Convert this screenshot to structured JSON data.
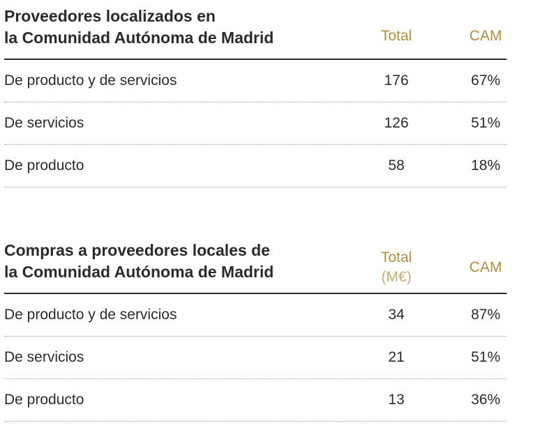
{
  "table1": {
    "title_line1": "Proveedores localizados en",
    "title_line2": "la Comunidad Autónoma de Madrid",
    "col_total": "Total",
    "col_cam": "CAM",
    "rows": [
      {
        "label": "De producto y de servicios",
        "total": "176",
        "cam": "67%"
      },
      {
        "label": "De servicios",
        "total": "126",
        "cam": "51%"
      },
      {
        "label": "De producto",
        "total": "58",
        "cam": "18%"
      }
    ]
  },
  "table2": {
    "title_line1": "Compras a proveedores locales de",
    "title_line2": "la Comunidad Autónoma de Madrid",
    "col_total": "Total",
    "col_total_unit": "(M€)",
    "col_cam": "CAM",
    "rows": [
      {
        "label": "De producto y de servicios",
        "total": "34",
        "cam": "87%"
      },
      {
        "label": "De servicios",
        "total": "21",
        "cam": "51%"
      },
      {
        "label": "De producto",
        "total": "13",
        "cam": "36%"
      }
    ]
  },
  "colors": {
    "text": "#2b2b2b",
    "accent_gold": "#b08d3e",
    "rule": "#2b2b2b",
    "dotted_rule": "#9a9a9a"
  }
}
